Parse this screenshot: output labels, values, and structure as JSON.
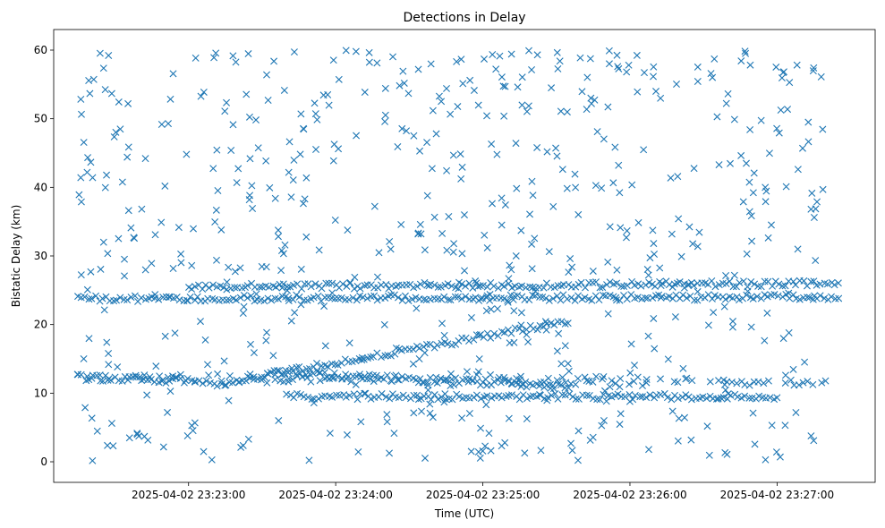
{
  "chart_data": {
    "type": "scatter",
    "title": "Detections in Delay",
    "xlabel": "Time (UTC)",
    "ylabel": "Bistatic Delay (km)",
    "x_type": "datetime",
    "x_start": "2025-04-02 23:22:15",
    "x_end": "2025-04-02 23:27:20",
    "xlim": [
      "2025-04-02 23:22:05",
      "2025-04-02 23:27:40"
    ],
    "ylim": [
      -3,
      63
    ],
    "x_ticks": [
      "2025-04-02 23:23:00",
      "2025-04-02 23:24:00",
      "2025-04-02 23:25:00",
      "2025-04-02 23:26:00",
      "2025-04-02 23:27:00"
    ],
    "y_ticks": [
      0,
      10,
      20,
      30,
      40,
      50,
      60
    ],
    "marker": "x",
    "color": "#1f77b4",
    "grid": false,
    "series": [
      {
        "trend_start": "2025-04-02 23:22:15",
        "trend_end": "2025-04-02 23:27:20",
        "trend_y_start": 12.3,
        "trend_y_end": 11.5,
        "trend_y_curve": 1.2
      },
      {
        "trend_start": "2025-04-02 23:22:15",
        "trend_end": "2025-04-02 23:22:55",
        "trend_y_start": 12.3,
        "trend_y_end": 11.8
      },
      {
        "trend_start": "2025-04-02 23:22:55",
        "trend_end": "2025-04-02 23:23:15",
        "trend_y_start": 11.9,
        "trend_y_end": 11.0
      },
      {
        "trend_start": "2025-04-02 23:23:15",
        "trend_end": "2025-04-02 23:25:35",
        "trend_y_start": 11.5,
        "trend_y_end": 20.5
      },
      {
        "trend_start": "2025-04-02 23:23:35",
        "trend_end": "2025-04-02 23:25:35",
        "trend_y_start": 13.0,
        "trend_y_end": 11.0
      },
      {
        "trend_start": "2025-04-02 23:23:00",
        "trend_end": "2025-04-02 23:27:25",
        "trend_y_start": 25.5,
        "trend_y_end": 26.0
      },
      {
        "trend_start": "2025-04-02 23:23:40",
        "trend_end": "2025-04-02 23:27:00",
        "trend_y_start": 9.5,
        "trend_y_end": 9.5
      },
      {
        "trend_start": "2025-04-02 23:22:15",
        "trend_end": "2025-04-02 23:27:25",
        "trend_y_start": 23.8,
        "trend_y_end": 24.0
      }
    ]
  }
}
